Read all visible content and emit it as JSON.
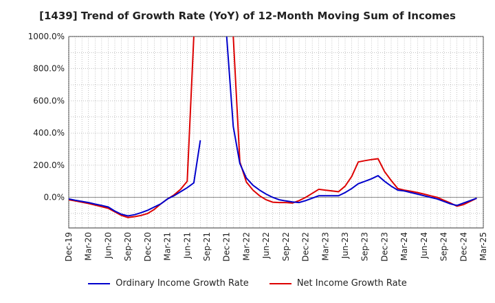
{
  "chart_data": {
    "type": "line",
    "title": "[1439]  Trend of Growth Rate (YoY) of 12-Month Moving Sum of Incomes",
    "xlabel": "",
    "ylabel": "",
    "x_ticks": [
      "Dec-19",
      "Mar-20",
      "Jun-20",
      "Sep-20",
      "Dec-20",
      "Mar-21",
      "Jun-21",
      "Sep-21",
      "Dec-21",
      "Mar-22",
      "Jun-22",
      "Sep-22",
      "Dec-22",
      "Mar-23",
      "Jun-23",
      "Sep-23",
      "Dec-23",
      "Mar-24",
      "Jun-24",
      "Sep-24",
      "Dec-24",
      "Mar-25"
    ],
    "y_ticks": [
      0,
      200,
      400,
      600,
      800,
      1000
    ],
    "y_tick_labels": [
      "0.0%",
      "200.0%",
      "400.0%",
      "600.0%",
      "800.0%",
      "1000.0%"
    ],
    "ylim": [
      -190,
      1000
    ],
    "grid": true,
    "legend_position": "bottom",
    "series": [
      {
        "name": "Ordinary Income Growth Rate",
        "color": "#0000cc",
        "points": [
          [
            0,
            -10
          ],
          [
            1,
            -20
          ],
          [
            2,
            -30
          ],
          [
            3,
            -45
          ],
          [
            4,
            -60
          ],
          [
            5,
            -90
          ],
          [
            6,
            -115
          ],
          [
            7,
            -105
          ],
          [
            8,
            -85
          ],
          [
            9,
            -60
          ],
          [
            10,
            -30
          ],
          [
            11,
            10
          ],
          [
            12,
            40
          ],
          [
            13,
            90
          ],
          [
            14,
            350
          ],
          [
            15,
            null
          ],
          [
            16,
            null
          ],
          [
            17,
            null
          ],
          [
            18,
            null
          ],
          [
            19,
            null
          ],
          [
            20,
            null
          ],
          [
            21,
            null
          ],
          [
            22,
            null
          ],
          [
            23,
            null
          ],
          [
            24,
            null
          ],
          [
            25,
            null
          ],
          [
            26,
            null
          ],
          [
            27,
            null
          ],
          [
            28,
            null
          ],
          [
            29,
            null
          ],
          [
            30,
            null
          ],
          [
            31,
            null
          ],
          [
            32,
            null
          ],
          [
            33,
            null
          ],
          [
            34,
            null
          ],
          [
            35,
            null
          ],
          [
            36,
            null
          ],
          [
            37,
            null
          ],
          [
            38,
            null
          ],
          [
            39,
            null
          ],
          [
            40,
            null
          ],
          [
            41,
            null
          ]
        ]
      },
      {
        "name": "Net Income Growth Rate",
        "color": "#dd0000",
        "points": []
      }
    ]
  }
}
